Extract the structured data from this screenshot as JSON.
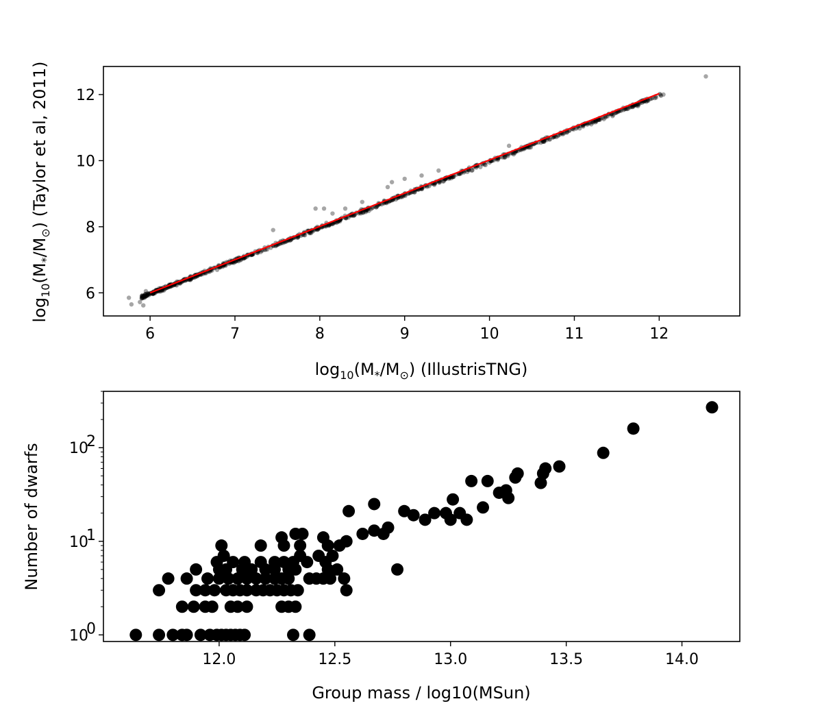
{
  "chart_data": [
    {
      "type": "scatter",
      "xlabel": "log$_{10}$(M$_*$/M$_\\odot$) (IllustrisTNG)",
      "ylabel": "log$_{10}$(M$_*$/M$_\\odot$) (Taylor et al, 2011)",
      "xlabel_parts": {
        "pre": "log",
        "sub1": "10",
        "mid1": "(M",
        "sub2": "*",
        "mid2": "/M",
        "sub3": "⊙",
        "post": ") (IllustrisTNG)"
      },
      "ylabel_parts": {
        "pre": "log",
        "sub1": "10",
        "mid1": "(M",
        "sub2": "*",
        "mid2": "/M",
        "sub3": "⊙",
        "post": ") (Taylor et al, 2011)"
      },
      "xlim": [
        5.45,
        12.95
      ],
      "ylim": [
        5.3,
        12.85
      ],
      "xticks": [
        6,
        7,
        8,
        9,
        10,
        11,
        12
      ],
      "yticks": [
        6,
        8,
        10,
        12
      ],
      "point_color": "#000000",
      "point_alpha": 0.35,
      "fit_line": {
        "x": [
          6.0,
          12.0
        ],
        "y": [
          6.0,
          12.03
        ],
        "color": "#ff0000"
      },
      "series": [
        {
          "trend": {
            "x_range": [
              5.9,
              12.05
            ],
            "slope": 1.0,
            "intercept": 0.02,
            "spread": 0.08
          },
          "outliers": [
            [
              5.75,
              5.85
            ],
            [
              5.78,
              5.65
            ],
            [
              5.88,
              5.72
            ],
            [
              5.92,
              5.62
            ],
            [
              5.95,
              6.05
            ],
            [
              7.45,
              7.9
            ],
            [
              7.95,
              8.55
            ],
            [
              8.05,
              8.55
            ],
            [
              8.15,
              8.4
            ],
            [
              8.3,
              8.55
            ],
            [
              8.5,
              8.75
            ],
            [
              8.8,
              9.2
            ],
            [
              8.85,
              9.35
            ],
            [
              9.0,
              9.45
            ],
            [
              9.2,
              9.55
            ],
            [
              9.4,
              9.7
            ],
            [
              10.23,
              10.45
            ],
            [
              11.2,
              11.1
            ],
            [
              11.45,
              11.35
            ],
            [
              11.75,
              11.65
            ],
            [
              12.05,
              12.0
            ],
            [
              12.55,
              12.55
            ]
          ]
        }
      ]
    },
    {
      "type": "scatter",
      "xlabel": "Group mass / log10(MSun)",
      "ylabel": "Number of dwarfs",
      "xlim": [
        11.5,
        14.25
      ],
      "ylim": [
        0.85,
        400
      ],
      "yscale": "log",
      "xticks": [
        12.0,
        12.5,
        13.0,
        13.5,
        14.0
      ],
      "xtick_labels": [
        "12.0",
        "12.5",
        "13.0",
        "13.5",
        "14.0"
      ],
      "yticks_major": [
        {
          "value": 1,
          "base": "10",
          "exp": "0"
        },
        {
          "value": 10,
          "base": "10",
          "exp": "1"
        },
        {
          "value": 100,
          "base": "10",
          "exp": "2"
        }
      ],
      "point_color": "#000000",
      "series": [
        {
          "points": [
            [
              11.64,
              1
            ],
            [
              11.74,
              1
            ],
            [
              11.8,
              1
            ],
            [
              11.84,
              1
            ],
            [
              11.86,
              1
            ],
            [
              11.92,
              1
            ],
            [
              11.96,
              1
            ],
            [
              11.99,
              1
            ],
            [
              12.01,
              1
            ],
            [
              12.03,
              1
            ],
            [
              12.05,
              1
            ],
            [
              12.07,
              1
            ],
            [
              12.09,
              1
            ],
            [
              12.11,
              1
            ],
            [
              12.32,
              1
            ],
            [
              12.39,
              1
            ],
            [
              11.84,
              2
            ],
            [
              11.89,
              2
            ],
            [
              11.94,
              2
            ],
            [
              11.97,
              2
            ],
            [
              12.05,
              2
            ],
            [
              12.08,
              2
            ],
            [
              12.12,
              2
            ],
            [
              12.27,
              2
            ],
            [
              12.3,
              2
            ],
            [
              12.33,
              2
            ],
            [
              11.74,
              3
            ],
            [
              11.9,
              3
            ],
            [
              11.94,
              3
            ],
            [
              11.98,
              3
            ],
            [
              12.03,
              3
            ],
            [
              12.06,
              3
            ],
            [
              12.09,
              3
            ],
            [
              12.12,
              3
            ],
            [
              12.16,
              3
            ],
            [
              12.19,
              3
            ],
            [
              12.22,
              3
            ],
            [
              12.25,
              3
            ],
            [
              12.28,
              3
            ],
            [
              12.31,
              3
            ],
            [
              12.34,
              3
            ],
            [
              12.55,
              3
            ],
            [
              11.78,
              4
            ],
            [
              11.86,
              4
            ],
            [
              11.95,
              4
            ],
            [
              12.0,
              4
            ],
            [
              12.04,
              4
            ],
            [
              12.08,
              4
            ],
            [
              12.12,
              4
            ],
            [
              12.16,
              4
            ],
            [
              12.2,
              4
            ],
            [
              12.24,
              4
            ],
            [
              12.27,
              4
            ],
            [
              12.3,
              4
            ],
            [
              12.39,
              4
            ],
            [
              12.42,
              4
            ],
            [
              12.45,
              4
            ],
            [
              12.48,
              4
            ],
            [
              12.54,
              4
            ],
            [
              11.9,
              5
            ],
            [
              12.0,
              5
            ],
            [
              12.03,
              5
            ],
            [
              12.1,
              5
            ],
            [
              12.14,
              5
            ],
            [
              12.2,
              5
            ],
            [
              12.24,
              5
            ],
            [
              12.3,
              5
            ],
            [
              12.33,
              5
            ],
            [
              12.47,
              5
            ],
            [
              12.51,
              5
            ],
            [
              12.77,
              5
            ],
            [
              11.99,
              6
            ],
            [
              12.06,
              6
            ],
            [
              12.11,
              6
            ],
            [
              12.18,
              6
            ],
            [
              12.24,
              6
            ],
            [
              12.28,
              6
            ],
            [
              12.32,
              6
            ],
            [
              12.38,
              6
            ],
            [
              12.46,
              6
            ],
            [
              12.02,
              7
            ],
            [
              12.35,
              7
            ],
            [
              12.43,
              7
            ],
            [
              12.49,
              7
            ],
            [
              12.01,
              9
            ],
            [
              12.18,
              9
            ],
            [
              12.28,
              9
            ],
            [
              12.35,
              9
            ],
            [
              12.47,
              9
            ],
            [
              12.52,
              9
            ],
            [
              12.55,
              10
            ],
            [
              12.45,
              11
            ],
            [
              12.27,
              11
            ],
            [
              12.33,
              12
            ],
            [
              12.36,
              12
            ],
            [
              12.62,
              12
            ],
            [
              12.67,
              13
            ],
            [
              12.73,
              14
            ],
            [
              12.71,
              12
            ],
            [
              12.56,
              21
            ],
            [
              12.67,
              25
            ],
            [
              12.8,
              21
            ],
            [
              12.84,
              19
            ],
            [
              12.89,
              17
            ],
            [
              12.93,
              20
            ],
            [
              12.98,
              20
            ],
            [
              13.0,
              17
            ],
            [
              13.01,
              28
            ],
            [
              13.04,
              20
            ],
            [
              13.07,
              17
            ],
            [
              13.09,
              44
            ],
            [
              13.14,
              23
            ],
            [
              13.16,
              44
            ],
            [
              13.21,
              33
            ],
            [
              13.24,
              35
            ],
            [
              13.25,
              29
            ],
            [
              13.28,
              48
            ],
            [
              13.29,
              53
            ],
            [
              13.39,
              42
            ],
            [
              13.4,
              53
            ],
            [
              13.41,
              60
            ],
            [
              13.47,
              63
            ],
            [
              13.66,
              88
            ],
            [
              13.79,
              160
            ],
            [
              14.13,
              270
            ]
          ]
        }
      ]
    }
  ]
}
